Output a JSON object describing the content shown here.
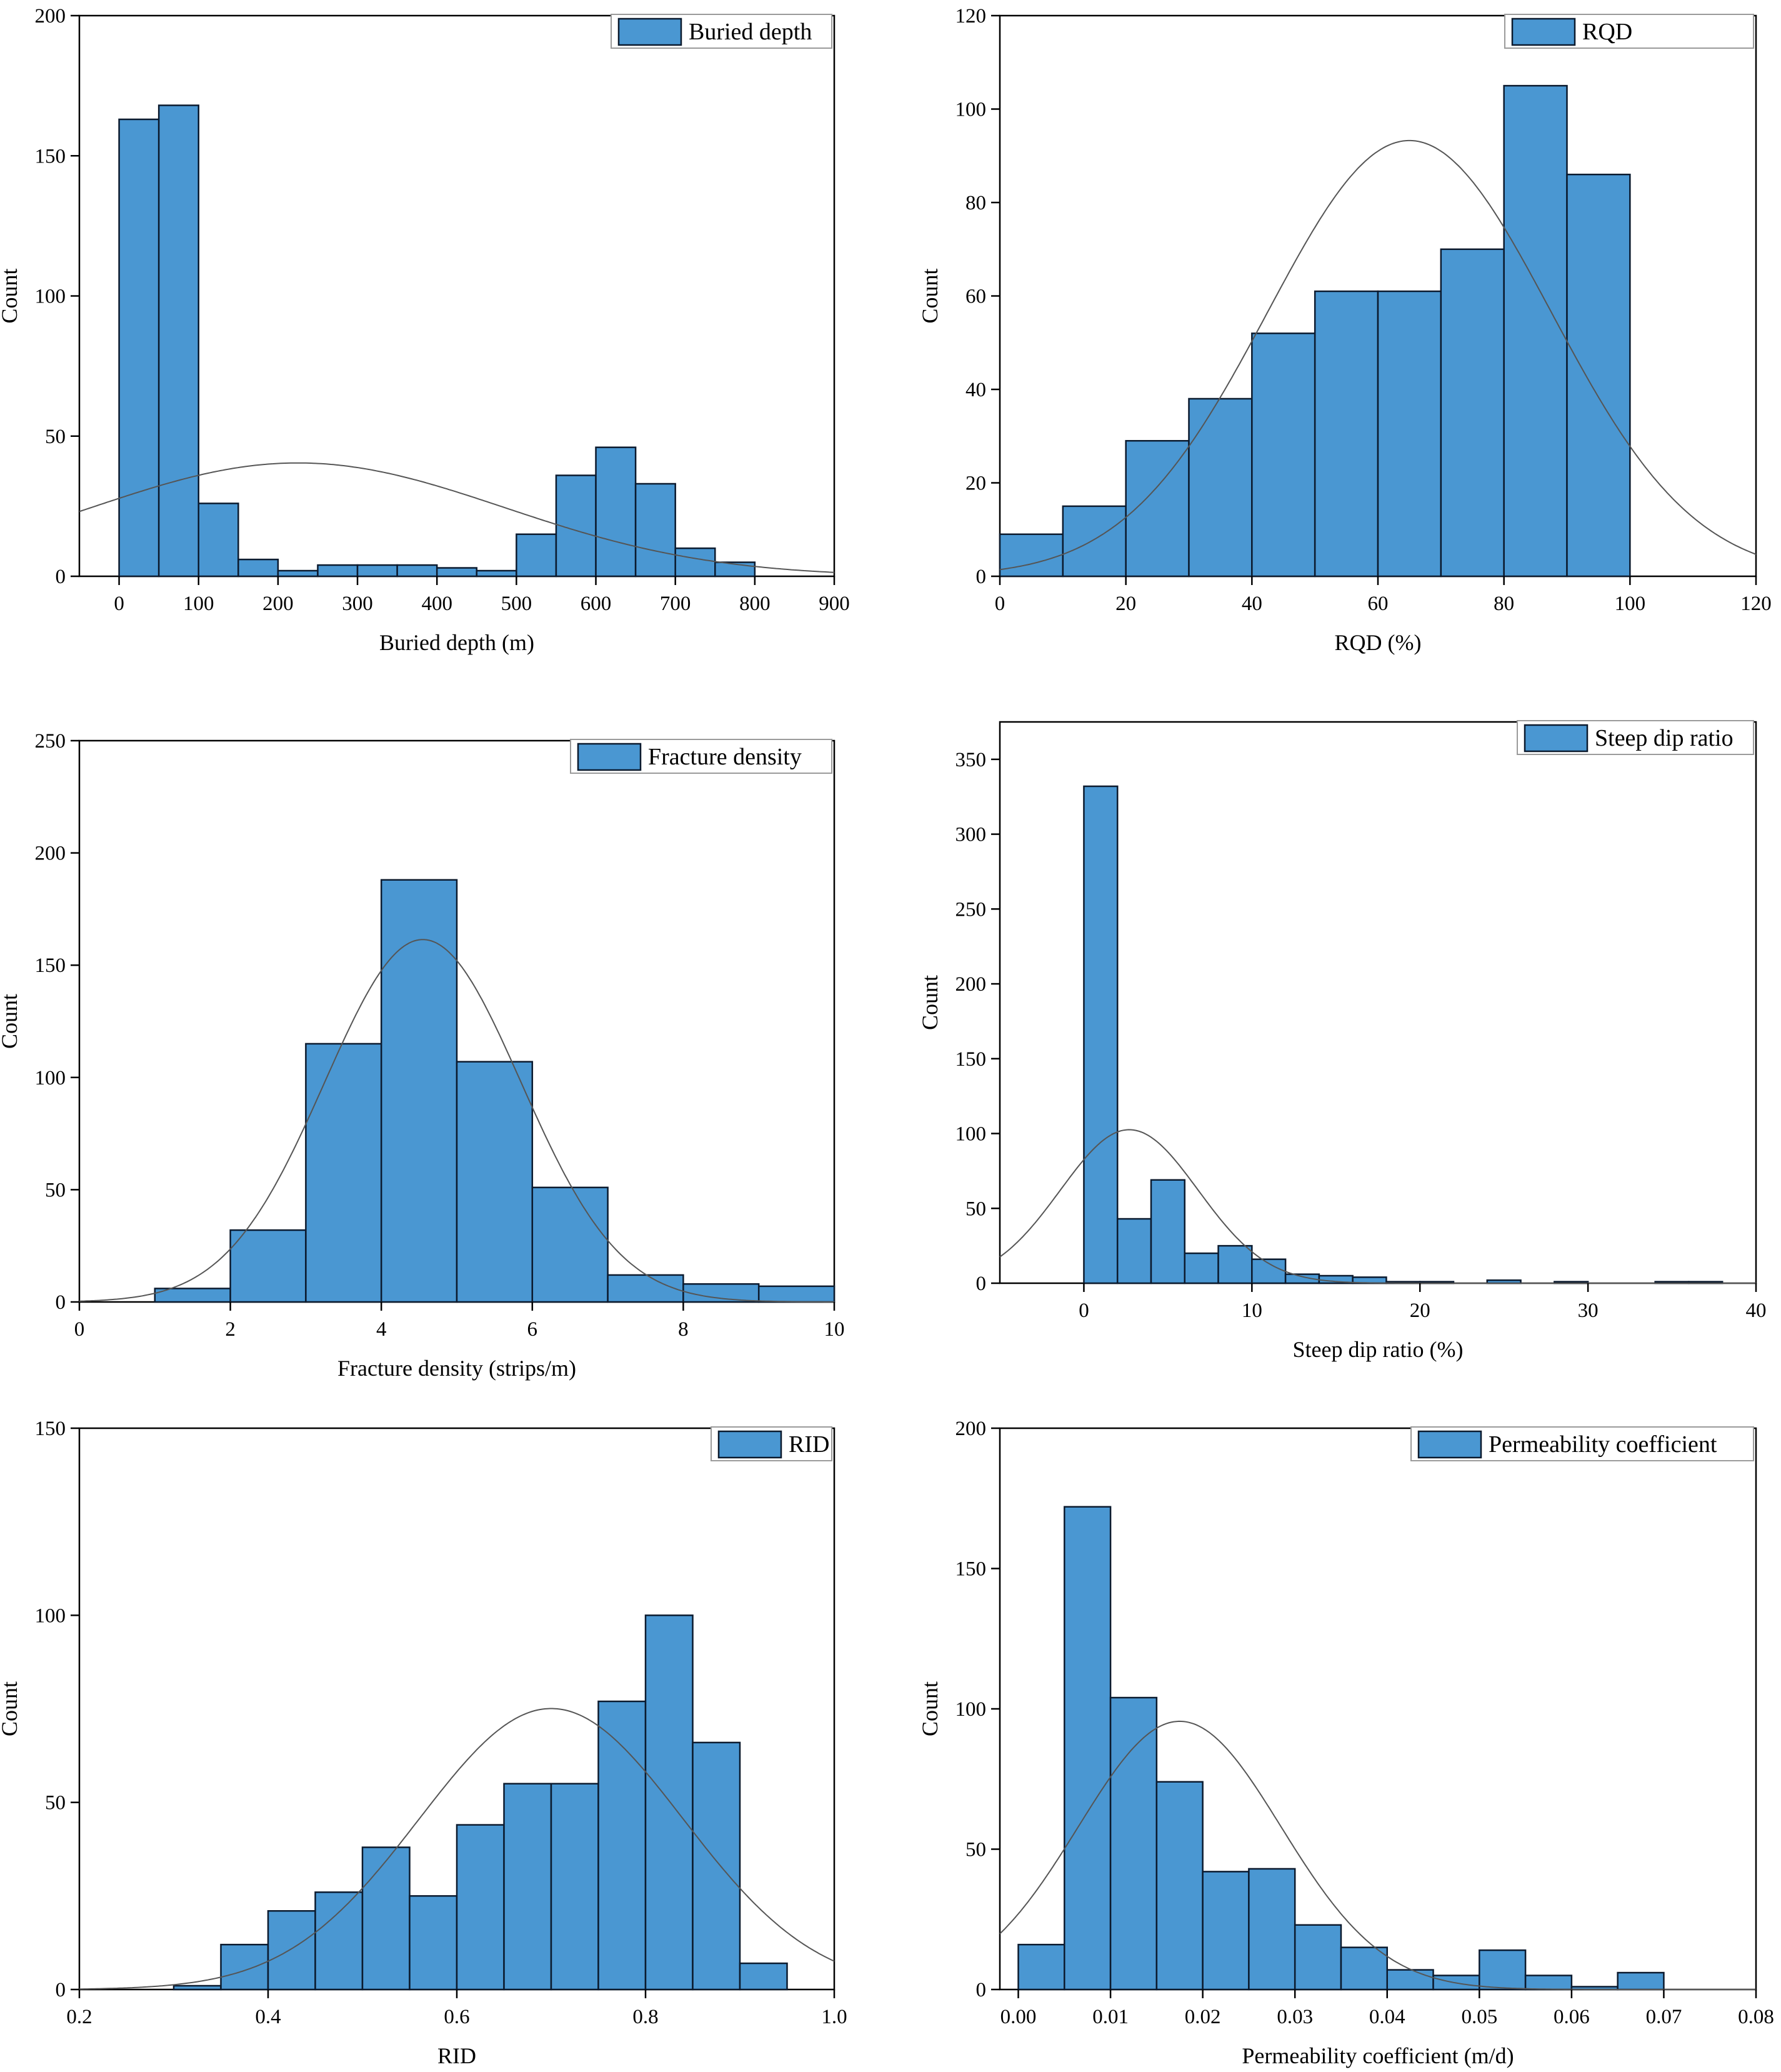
{
  "figure": {
    "panel_count": 6
  },
  "style": {
    "bar_fill": "#4A97D2",
    "bar_stroke": "#0b1a2e",
    "curve_color": "#555555",
    "axis_color": "#000000",
    "background": "#ffffff"
  },
  "chart_data": [
    {
      "type": "bar",
      "subtype": "histogram_with_normal_fit",
      "legend": "Buried depth",
      "legend_position": "top-right",
      "xlabel": "Buried depth (m)",
      "ylabel": "Count",
      "xlim": [
        -50,
        900
      ],
      "ylim": [
        0,
        200
      ],
      "xticks": [
        0,
        100,
        200,
        300,
        400,
        500,
        600,
        700,
        800,
        900
      ],
      "yticks": [
        0,
        50,
        100,
        150,
        200
      ],
      "xtick_labels": [
        "0",
        "100",
        "200",
        "300",
        "400",
        "500",
        "600",
        "700",
        "800",
        "900"
      ],
      "ytick_labels": [
        "0",
        "50",
        "100",
        "150",
        "200"
      ],
      "bin_edges": [
        0,
        50,
        100,
        150,
        200,
        250,
        300,
        350,
        400,
        450,
        500,
        550,
        600,
        650,
        700,
        750,
        800
      ],
      "counts": [
        163,
        168,
        26,
        6,
        2,
        4,
        4,
        4,
        3,
        2,
        15,
        36,
        46,
        33,
        10,
        5
      ],
      "normal_fit": {
        "mean": 225,
        "sd": 260
      }
    },
    {
      "type": "bar",
      "subtype": "histogram_with_normal_fit",
      "legend": "RQD",
      "legend_position": "top-right",
      "xlabel": "RQD (%)",
      "ylabel": "Count",
      "xlim": [
        0,
        120
      ],
      "ylim": [
        0,
        120
      ],
      "xticks": [
        0,
        20,
        40,
        60,
        80,
        100,
        120
      ],
      "yticks": [
        0,
        20,
        40,
        60,
        80,
        100,
        120
      ],
      "xtick_labels": [
        "0",
        "20",
        "40",
        "60",
        "80",
        "100",
        "120"
      ],
      "ytick_labels": [
        "0",
        "20",
        "40",
        "60",
        "80",
        "100",
        "120"
      ],
      "bin_edges": [
        0,
        10,
        20,
        30,
        40,
        50,
        60,
        70,
        80,
        90,
        100
      ],
      "counts": [
        9,
        15,
        29,
        38,
        52,
        61,
        61,
        70,
        105,
        86
      ],
      "normal_fit": {
        "mean": 65,
        "sd": 22.5
      }
    },
    {
      "type": "bar",
      "subtype": "histogram_with_normal_fit",
      "legend": "Fracture density",
      "legend_position": "top-right",
      "xlabel": "Fracture density (strips/m)",
      "ylabel": "Count",
      "xlim": [
        0,
        10
      ],
      "ylim": [
        0,
        250
      ],
      "xticks": [
        0,
        2,
        4,
        6,
        8,
        10
      ],
      "yticks": [
        0,
        50,
        100,
        150,
        200,
        250
      ],
      "xtick_labels": [
        "0",
        "2",
        "4",
        "6",
        "8",
        "10"
      ],
      "ytick_labels": [
        "0",
        "50",
        "100",
        "150",
        "200",
        "250"
      ],
      "bin_edges": [
        0,
        1,
        2,
        3,
        4,
        5,
        6,
        7,
        8,
        9,
        10
      ],
      "counts": [
        0,
        6,
        32,
        115,
        188,
        107,
        51,
        12,
        8,
        7
      ],
      "normal_fit": {
        "mean": 4.55,
        "sd": 1.3
      }
    },
    {
      "type": "bar",
      "subtype": "histogram_with_normal_fit",
      "legend": "Steep dip ratio",
      "legend_position": "top-right",
      "xlabel": "Steep dip ratio (%)",
      "ylabel": "Count",
      "xlim": [
        -5,
        40
      ],
      "ylim": [
        0,
        375
      ],
      "xticks": [
        0,
        10,
        20,
        30,
        40
      ],
      "yticks": [
        0,
        50,
        100,
        150,
        200,
        250,
        300,
        350
      ],
      "xtick_labels": [
        "0",
        "10",
        "20",
        "30",
        "40"
      ],
      "ytick_labels": [
        "0",
        "50",
        "100",
        "150",
        "200",
        "250",
        "300",
        "350"
      ],
      "bin_edges": [
        0,
        2,
        4,
        6,
        8,
        10,
        12,
        14,
        16,
        18,
        20,
        22,
        24,
        26,
        28,
        30,
        32,
        34,
        36,
        38
      ],
      "counts": [
        332,
        43,
        69,
        20,
        25,
        16,
        6,
        5,
        4,
        1,
        1,
        0,
        2,
        0,
        1,
        0,
        0,
        1,
        1
      ],
      "normal_fit": {
        "mean": 2.7,
        "sd": 4.1
      }
    },
    {
      "type": "bar",
      "subtype": "histogram_with_normal_fit",
      "legend": "RID",
      "legend_position": "top-right",
      "xlabel": "RID",
      "ylabel": "Count",
      "xlim": [
        0.2,
        1.0
      ],
      "ylim": [
        0,
        150
      ],
      "xticks": [
        0.2,
        0.4,
        0.6,
        0.8,
        1.0
      ],
      "yticks": [
        0,
        50,
        100,
        150
      ],
      "xtick_labels": [
        "0.2",
        "0.4",
        "0.6",
        "0.8",
        "1.0"
      ],
      "ytick_labels": [
        "0",
        "50",
        "100",
        "150"
      ],
      "bin_edges": [
        0.3,
        0.35,
        0.4,
        0.45,
        0.5,
        0.55,
        0.6,
        0.65,
        0.7,
        0.75,
        0.8,
        0.85,
        0.9,
        0.95
      ],
      "counts": [
        1,
        12,
        21,
        26,
        38,
        25,
        44,
        55,
        55,
        77,
        100,
        66,
        7
      ],
      "normal_fit": {
        "mean": 0.7,
        "sd": 0.14
      }
    },
    {
      "type": "bar",
      "subtype": "histogram_with_normal_fit",
      "legend": "Permeability coefficient",
      "legend_position": "top-right",
      "xlabel": "Permeability coefficient (m/d)",
      "ylabel": "Count",
      "xlim": [
        -0.002,
        0.08
      ],
      "ylim": [
        0,
        200
      ],
      "xticks": [
        0.0,
        0.01,
        0.02,
        0.03,
        0.04,
        0.05,
        0.06,
        0.07,
        0.08
      ],
      "yticks": [
        0,
        50,
        100,
        150,
        200
      ],
      "xtick_labels": [
        "0.00",
        "0.01",
        "0.02",
        "0.03",
        "0.04",
        "0.05",
        "0.06",
        "0.07",
        "0.08"
      ],
      "ytick_labels": [
        "0",
        "50",
        "100",
        "150",
        "200"
      ],
      "bin_edges": [
        0.0,
        0.005,
        0.01,
        0.015,
        0.02,
        0.025,
        0.03,
        0.035,
        0.04,
        0.045,
        0.05,
        0.055,
        0.06,
        0.065,
        0.07
      ],
      "counts": [
        16,
        172,
        104,
        74,
        42,
        43,
        23,
        15,
        7,
        5,
        14,
        5,
        1,
        6
      ],
      "normal_fit": {
        "mean": 0.0175,
        "sd": 0.011
      }
    }
  ]
}
